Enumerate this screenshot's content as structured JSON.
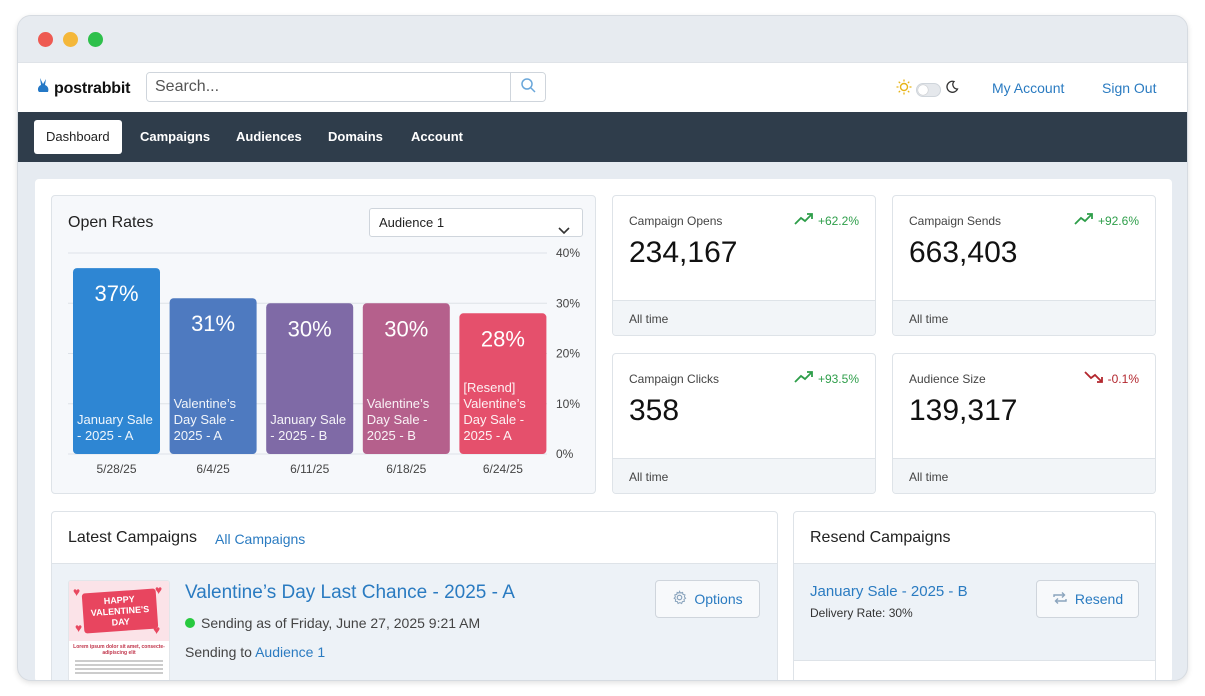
{
  "brand": {
    "name": "postrabbit"
  },
  "search": {
    "placeholder": "Search..."
  },
  "header": {
    "my_account": "My Account",
    "sign_out": "Sign Out"
  },
  "nav": {
    "items": [
      {
        "label": "Dashboard",
        "active": true
      },
      {
        "label": "Campaigns"
      },
      {
        "label": "Audiences"
      },
      {
        "label": "Domains"
      },
      {
        "label": "Account"
      }
    ]
  },
  "open_rates": {
    "title": "Open Rates",
    "audience_select": "Audience 1"
  },
  "chart_data": {
    "type": "bar",
    "title": "Open Rates",
    "categories": [
      "5/28/25",
      "6/4/25",
      "6/11/25",
      "6/18/25",
      "6/24/25"
    ],
    "bar_labels": [
      "January Sale - 2025 - A",
      "Valentine’s Day Sale - 2025 - A",
      "January Sale - 2025 - B",
      "Valentine’s Day Sale - 2025 - B",
      "[Resend] Valentine’s Day Sale - 2025 - A"
    ],
    "values": [
      37,
      31,
      30,
      30,
      28
    ],
    "value_labels": [
      "37%",
      "31%",
      "30%",
      "30%",
      "28%"
    ],
    "colors": [
      "#2e86d3",
      "#4e7ac0",
      "#7f6aa6",
      "#b5608c",
      "#e5506c"
    ],
    "y_ticks": [
      "40%",
      "30%",
      "20%",
      "10%",
      "0%"
    ],
    "ylim": [
      0,
      40
    ],
    "grid": true
  },
  "stats": [
    {
      "label": "Campaign Opens",
      "value": "234,167",
      "trend": "+62.2%",
      "direction": "up",
      "foot": "All time"
    },
    {
      "label": "Campaign Sends",
      "value": "663,403",
      "trend": "+92.6%",
      "direction": "up",
      "foot": "All time"
    },
    {
      "label": "Campaign Clicks",
      "value": "358",
      "trend": "+93.5%",
      "direction": "up",
      "foot": "All time"
    },
    {
      "label": "Audience Size",
      "value": "139,317",
      "trend": "-0.1%",
      "direction": "down",
      "foot": "All time"
    }
  ],
  "latest": {
    "title": "Latest Campaigns",
    "all_link": "All Campaigns",
    "campaign": {
      "title": "Valentine’s Day Last Chance - 2025 - A",
      "status": "Sending as of Friday, June 27, 2025 9:21 AM",
      "sending_to_label": "Sending to",
      "audience": "Audience 1",
      "options_label": "Options",
      "thumb_banner": "HAPPY VALENTINE'S DAY",
      "thumb_caption": "Lorem ipsum dolor sit amet, consecte- adipiscing elit"
    }
  },
  "resend": {
    "title": "Resend Campaigns",
    "item": {
      "title": "January Sale - 2025 - B",
      "rate": "Delivery Rate: 30%",
      "button": "Resend"
    }
  }
}
